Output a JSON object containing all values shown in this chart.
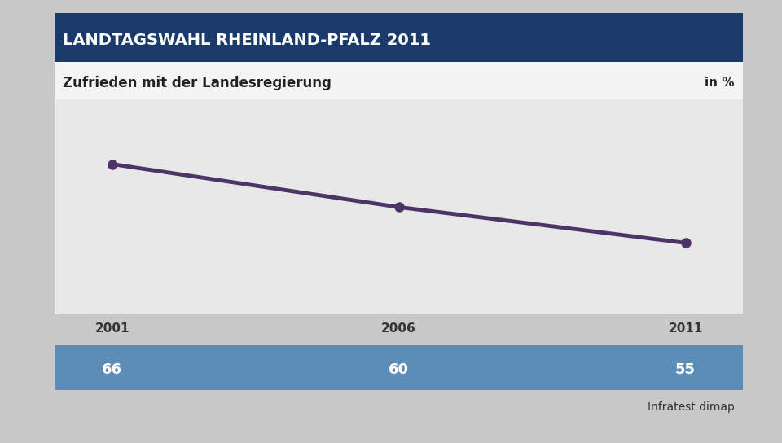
{
  "title": "LANDTAGSWAHL RHEINLAND-PFALZ 2011",
  "subtitle": "Zufrieden mit der Landesregierung",
  "unit_label": "in %",
  "source": "Infratest dimap",
  "years": [
    2001,
    2006,
    2011
  ],
  "values": [
    66,
    60,
    55
  ],
  "line_color": "#4d3466",
  "marker_color": "#4d3466",
  "title_bg_color": "#1a3a6b",
  "title_text_color": "#ffffff",
  "subtitle_text_color": "#222222",
  "table_bg_color": "#5b8db8",
  "table_text_color": "#ffffff",
  "year_text_color": "#333333",
  "bg_color_outer": "#c8c8c8",
  "bg_color_plot": "#e8e8e8",
  "ylim": [
    45,
    75
  ],
  "grid_color": "#cccccc",
  "line_width": 3.5,
  "marker_size": 8
}
